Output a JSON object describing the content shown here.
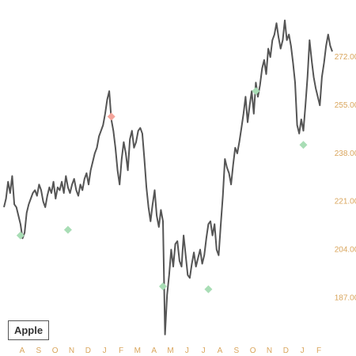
{
  "theme": {
    "line_color": "#555555",
    "axis_label_color": "#d9a55c",
    "buy_marker_color": "#a8ddb5",
    "sell_marker_color": "#f4a49a"
  },
  "chart_data": {
    "type": "line",
    "title": "Apple",
    "xlabel": "",
    "ylabel": "",
    "yticks": [
      187.0,
      204.0,
      221.0,
      238.0,
      255.0,
      272.0
    ],
    "ytick_labels": [
      "187.00",
      "204.00",
      "221.00",
      "238.00",
      "255.00",
      "272.00"
    ],
    "ylim": [
      172.0,
      288.0
    ],
    "x_tick_labels": [
      "A",
      "S",
      "O",
      "N",
      "D",
      "J",
      "F",
      "M",
      "A",
      "M",
      "J",
      "J",
      "A",
      "S",
      "O",
      "N",
      "D",
      "J",
      "F"
    ],
    "grid": false,
    "series": [
      {
        "values": [
          219,
          222,
          228,
          224,
          230,
          220,
          219,
          216,
          213,
          208,
          210,
          217,
          220,
          222,
          224,
          225,
          223,
          227,
          225,
          221,
          219,
          223,
          226,
          224,
          228,
          222,
          226,
          225,
          228,
          224,
          230,
          226,
          224,
          227,
          229,
          225,
          223,
          227,
          225,
          229,
          231,
          227,
          232,
          235,
          238,
          240,
          244,
          246,
          248,
          252,
          257,
          260,
          250,
          246,
          240,
          232,
          227,
          236,
          242,
          238,
          232,
          243,
          246,
          240,
          242,
          246,
          247,
          245,
          236,
          226,
          219,
          214,
          220,
          225,
          216,
          212,
          218,
          214,
          174,
          188,
          195,
          204,
          198,
          206,
          207,
          200,
          198,
          209,
          202,
          195,
          194,
          199,
          203,
          198,
          201,
          204,
          199,
          202,
          208,
          213,
          214,
          209,
          213,
          204,
          202,
          213,
          223,
          236,
          233,
          231,
          227,
          234,
          240,
          238,
          242,
          247,
          252,
          258,
          249,
          255,
          260,
          252,
          263,
          258,
          262,
          268,
          271,
          266,
          275,
          272,
          278,
          280,
          284,
          279,
          275,
          278,
          285,
          278,
          280,
          276,
          270,
          263,
          248,
          245,
          250,
          246,
          255,
          265,
          278,
          271,
          265,
          261,
          258,
          255,
          265,
          270,
          276,
          280,
          276,
          274
        ],
        "x_start_month": "A"
      }
    ],
    "markers": [
      {
        "kind": "buy",
        "index": 8,
        "value": 209
      },
      {
        "kind": "buy",
        "index": 31,
        "value": 211
      },
      {
        "kind": "sell",
        "index": 52,
        "value": 251
      },
      {
        "kind": "buy",
        "index": 77,
        "value": 191
      },
      {
        "kind": "buy",
        "index": 99,
        "value": 190
      },
      {
        "kind": "buy",
        "index": 122,
        "value": 260
      },
      {
        "kind": "buy",
        "index": 145,
        "value": 241
      }
    ]
  }
}
